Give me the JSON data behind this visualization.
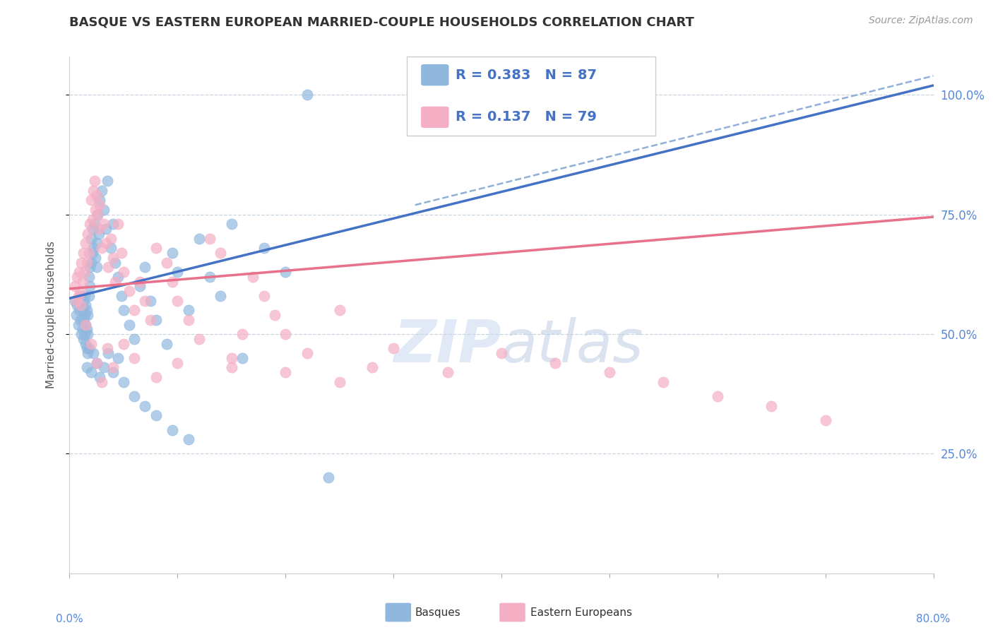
{
  "title": "BASQUE VS EASTERN EUROPEAN MARRIED-COUPLE HOUSEHOLDS CORRELATION CHART",
  "source": "Source: ZipAtlas.com",
  "ylabel": "Married-couple Households",
  "legend_blue_label": "Basques",
  "legend_pink_label": "Eastern Europeans",
  "blue_R": "0.383",
  "blue_N": "87",
  "pink_R": "0.137",
  "pink_N": "79",
  "blue_color": "#90b8df",
  "pink_color": "#f5afc4",
  "blue_line_color": "#4472c4",
  "pink_line_color": "#e8708a",
  "dashed_line_color": "#90b0d8",
  "background_color": "#ffffff",
  "grid_color": "#c8d4e0",
  "title_color": "#333333",
  "source_color": "#999999",
  "axis_color": "#555555",
  "right_tick_color": "#5588dd",
  "x_min": 0.0,
  "x_max": 0.8,
  "y_min": 0.0,
  "y_max": 1.08,
  "blue_line_x0": 0.0,
  "blue_line_y0": 0.575,
  "blue_line_x1": 0.8,
  "blue_line_y1": 1.02,
  "pink_line_x0": 0.0,
  "pink_line_y0": 0.595,
  "pink_line_x1": 0.8,
  "pink_line_y1": 0.745,
  "dash_line_x0": 0.32,
  "dash_line_y0": 0.77,
  "dash_line_x1": 0.8,
  "dash_line_y1": 1.04,
  "blue_x": [
    0.005,
    0.006,
    0.007,
    0.008,
    0.009,
    0.01,
    0.01,
    0.011,
    0.011,
    0.012,
    0.012,
    0.013,
    0.013,
    0.013,
    0.014,
    0.014,
    0.014,
    0.015,
    0.015,
    0.015,
    0.016,
    0.016,
    0.016,
    0.017,
    0.017,
    0.017,
    0.018,
    0.018,
    0.019,
    0.019,
    0.02,
    0.02,
    0.021,
    0.021,
    0.022,
    0.023,
    0.024,
    0.025,
    0.025,
    0.026,
    0.027,
    0.028,
    0.03,
    0.032,
    0.034,
    0.035,
    0.038,
    0.04,
    0.042,
    0.045,
    0.048,
    0.05,
    0.055,
    0.06,
    0.065,
    0.07,
    0.075,
    0.08,
    0.09,
    0.095,
    0.1,
    0.11,
    0.12,
    0.13,
    0.14,
    0.15,
    0.16,
    0.18,
    0.2,
    0.22,
    0.016,
    0.018,
    0.02,
    0.022,
    0.025,
    0.028,
    0.032,
    0.036,
    0.04,
    0.045,
    0.05,
    0.06,
    0.07,
    0.08,
    0.095,
    0.11,
    0.24
  ],
  "blue_y": [
    0.57,
    0.54,
    0.56,
    0.52,
    0.55,
    0.53,
    0.58,
    0.5,
    0.56,
    0.51,
    0.55,
    0.49,
    0.53,
    0.57,
    0.5,
    0.54,
    0.58,
    0.48,
    0.52,
    0.56,
    0.47,
    0.51,
    0.55,
    0.46,
    0.5,
    0.54,
    0.62,
    0.58,
    0.64,
    0.6,
    0.65,
    0.7,
    0.67,
    0.72,
    0.68,
    0.73,
    0.66,
    0.69,
    0.64,
    0.75,
    0.71,
    0.78,
    0.8,
    0.76,
    0.72,
    0.82,
    0.68,
    0.73,
    0.65,
    0.62,
    0.58,
    0.55,
    0.52,
    0.49,
    0.6,
    0.64,
    0.57,
    0.53,
    0.48,
    0.67,
    0.63,
    0.55,
    0.7,
    0.62,
    0.58,
    0.73,
    0.45,
    0.68,
    0.63,
    1.0,
    0.43,
    0.47,
    0.42,
    0.46,
    0.44,
    0.41,
    0.43,
    0.46,
    0.42,
    0.45,
    0.4,
    0.37,
    0.35,
    0.33,
    0.3,
    0.28,
    0.2
  ],
  "pink_x": [
    0.005,
    0.006,
    0.007,
    0.008,
    0.009,
    0.01,
    0.011,
    0.012,
    0.013,
    0.014,
    0.015,
    0.016,
    0.017,
    0.018,
    0.019,
    0.02,
    0.021,
    0.022,
    0.023,
    0.024,
    0.025,
    0.026,
    0.027,
    0.028,
    0.03,
    0.032,
    0.034,
    0.036,
    0.038,
    0.04,
    0.042,
    0.045,
    0.048,
    0.05,
    0.055,
    0.06,
    0.065,
    0.07,
    0.075,
    0.08,
    0.09,
    0.095,
    0.1,
    0.11,
    0.12,
    0.13,
    0.14,
    0.15,
    0.16,
    0.17,
    0.18,
    0.19,
    0.2,
    0.22,
    0.25,
    0.28,
    0.3,
    0.35,
    0.4,
    0.45,
    0.5,
    0.55,
    0.6,
    0.65,
    0.7,
    0.01,
    0.015,
    0.02,
    0.025,
    0.03,
    0.035,
    0.04,
    0.05,
    0.06,
    0.08,
    0.1,
    0.15,
    0.2,
    0.25
  ],
  "pink_y": [
    0.6,
    0.57,
    0.62,
    0.58,
    0.63,
    0.59,
    0.65,
    0.61,
    0.67,
    0.63,
    0.69,
    0.65,
    0.71,
    0.67,
    0.73,
    0.78,
    0.74,
    0.8,
    0.82,
    0.76,
    0.79,
    0.75,
    0.72,
    0.77,
    0.68,
    0.73,
    0.69,
    0.64,
    0.7,
    0.66,
    0.61,
    0.73,
    0.67,
    0.63,
    0.59,
    0.55,
    0.61,
    0.57,
    0.53,
    0.68,
    0.65,
    0.61,
    0.57,
    0.53,
    0.49,
    0.7,
    0.67,
    0.45,
    0.5,
    0.62,
    0.58,
    0.54,
    0.5,
    0.46,
    0.55,
    0.43,
    0.47,
    0.42,
    0.46,
    0.44,
    0.42,
    0.4,
    0.37,
    0.35,
    0.32,
    0.56,
    0.52,
    0.48,
    0.44,
    0.4,
    0.47,
    0.43,
    0.48,
    0.45,
    0.41,
    0.44,
    0.43,
    0.42,
    0.4
  ],
  "watermark_zip": "ZIP",
  "watermark_atlas": "atlas",
  "watermark_color_zip": "#c5d5e8",
  "watermark_color_atlas": "#c5cfe8"
}
